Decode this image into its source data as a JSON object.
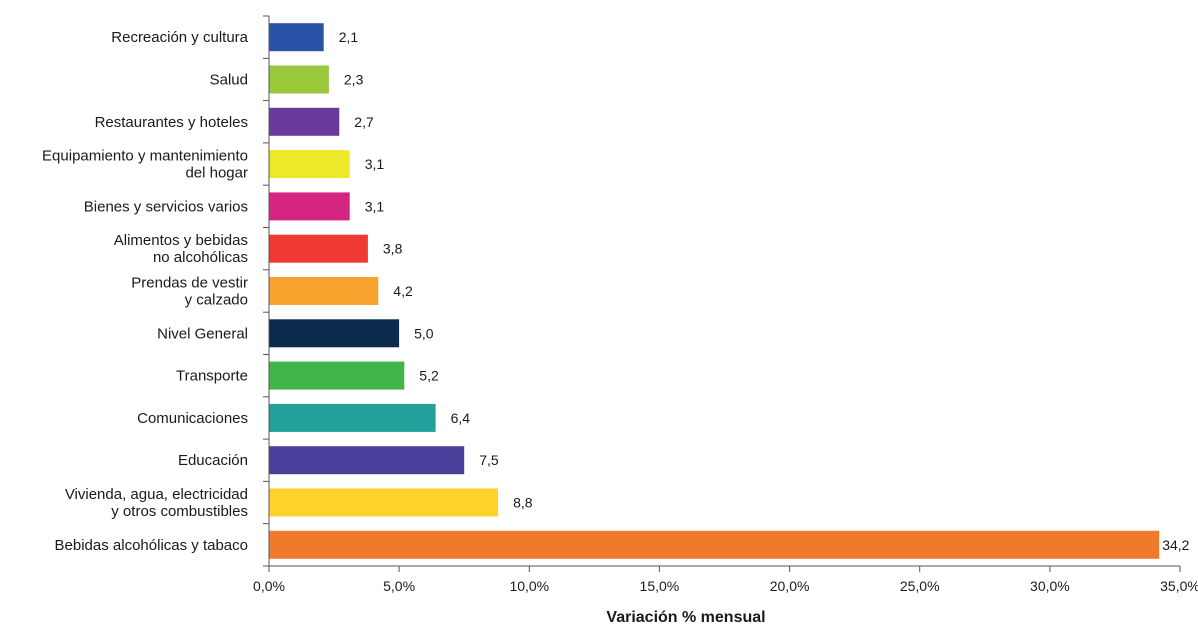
{
  "chart_data": {
    "type": "bar",
    "orientation": "horizontal",
    "xlabel": "Variación % mensual",
    "xlim": [
      0,
      35
    ],
    "x_ticks": [
      "0,0%",
      "5,0%",
      "10,0%",
      "15,0%",
      "20,0%",
      "25,0%",
      "30,0%",
      "35,0%"
    ],
    "grid": false,
    "categories": [
      [
        "Recreación y cultura"
      ],
      [
        "Salud"
      ],
      [
        "Restaurantes y hoteles"
      ],
      [
        "Equipamiento y mantenimiento",
        "del hogar"
      ],
      [
        "Bienes y servicios varios"
      ],
      [
        "Alimentos y bebidas",
        "no alcohólicas"
      ],
      [
        "Prendas de vestir",
        "y calzado"
      ],
      [
        "Nivel General"
      ],
      [
        "Transporte"
      ],
      [
        "Comunicaciones"
      ],
      [
        "Educación"
      ],
      [
        "Vivienda, agua, electricidad",
        "y otros combustibles"
      ],
      [
        "Bebidas alcohólicas y tabaco"
      ]
    ],
    "values": [
      2.1,
      2.3,
      2.7,
      3.1,
      3.1,
      3.8,
      4.2,
      5.0,
      5.2,
      6.4,
      7.5,
      8.8,
      34.2
    ],
    "value_labels": [
      "2,1",
      "2,3",
      "2,7",
      "3,1",
      "3,1",
      "3,8",
      "4,2",
      "5,0",
      "5,2",
      "6,4",
      "7,5",
      "8,8",
      "34,2"
    ],
    "colors": [
      "#2a52a6",
      "#9aca3c",
      "#6a3a9a",
      "#ece82a",
      "#d42583",
      "#ee3a33",
      "#f6a42e",
      "#0b2a4e",
      "#3fb54a",
      "#21a09c",
      "#4a3f9a",
      "#fdd22a",
      "#f07a2c"
    ]
  }
}
